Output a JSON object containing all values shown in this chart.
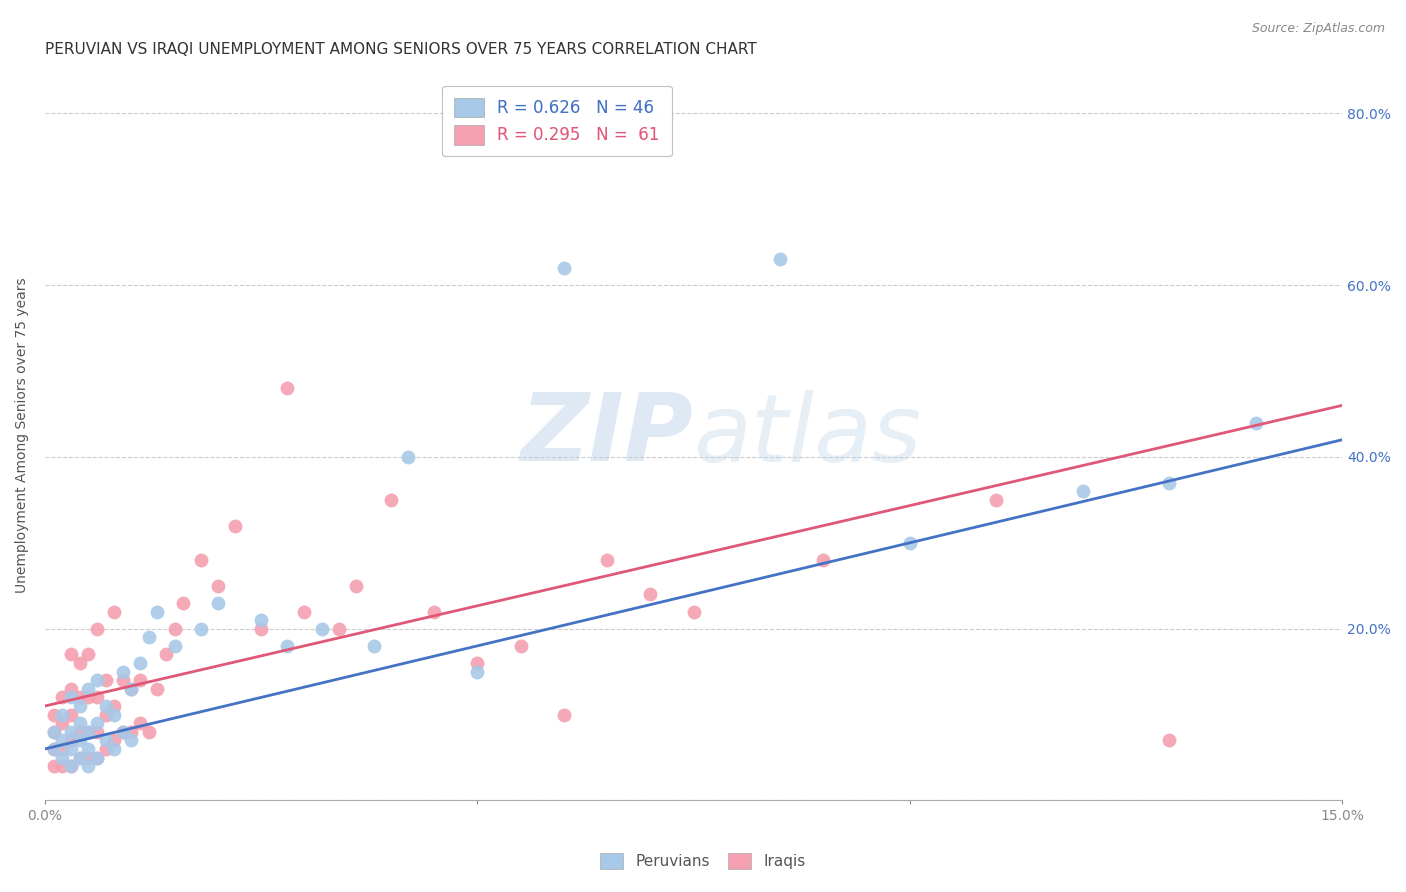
{
  "title": "PERUVIAN VS IRAQI UNEMPLOYMENT AMONG SENIORS OVER 75 YEARS CORRELATION CHART",
  "source": "Source: ZipAtlas.com",
  "ylabel": "Unemployment Among Seniors over 75 years",
  "x_min": 0.0,
  "x_max": 0.15,
  "y_min": 0.0,
  "y_max": 0.85,
  "y_ticks": [
    0.0,
    0.2,
    0.4,
    0.6,
    0.8
  ],
  "y_tick_labels": [
    "",
    "20.0%",
    "40.0%",
    "60.0%",
    "80.0%"
  ],
  "peruvian_color": "#a8c8e8",
  "iraqi_color": "#f4a0b0",
  "peruvian_line_color": "#4472c4",
  "iraqi_line_color": "#e05878",
  "peruvians_x": [
    0.001,
    0.001,
    0.002,
    0.002,
    0.002,
    0.003,
    0.003,
    0.003,
    0.003,
    0.004,
    0.004,
    0.004,
    0.004,
    0.005,
    0.005,
    0.005,
    0.005,
    0.006,
    0.006,
    0.006,
    0.007,
    0.007,
    0.008,
    0.008,
    0.009,
    0.009,
    0.01,
    0.01,
    0.011,
    0.012,
    0.013,
    0.015,
    0.018,
    0.02,
    0.025,
    0.028,
    0.032,
    0.038,
    0.042,
    0.05,
    0.06,
    0.085,
    0.1,
    0.12,
    0.13,
    0.14
  ],
  "peruvians_y": [
    0.06,
    0.08,
    0.05,
    0.07,
    0.1,
    0.04,
    0.06,
    0.08,
    0.12,
    0.05,
    0.07,
    0.09,
    0.11,
    0.04,
    0.06,
    0.08,
    0.13,
    0.05,
    0.09,
    0.14,
    0.07,
    0.11,
    0.06,
    0.1,
    0.08,
    0.15,
    0.07,
    0.13,
    0.16,
    0.19,
    0.22,
    0.18,
    0.2,
    0.23,
    0.21,
    0.18,
    0.2,
    0.18,
    0.4,
    0.15,
    0.62,
    0.63,
    0.3,
    0.36,
    0.37,
    0.44
  ],
  "iraqis_x": [
    0.001,
    0.001,
    0.001,
    0.001,
    0.002,
    0.002,
    0.002,
    0.002,
    0.003,
    0.003,
    0.003,
    0.003,
    0.003,
    0.004,
    0.004,
    0.004,
    0.004,
    0.005,
    0.005,
    0.005,
    0.005,
    0.006,
    0.006,
    0.006,
    0.006,
    0.007,
    0.007,
    0.007,
    0.008,
    0.008,
    0.008,
    0.009,
    0.009,
    0.01,
    0.01,
    0.011,
    0.011,
    0.012,
    0.013,
    0.014,
    0.015,
    0.016,
    0.018,
    0.02,
    0.022,
    0.025,
    0.028,
    0.03,
    0.034,
    0.036,
    0.04,
    0.045,
    0.05,
    0.055,
    0.06,
    0.065,
    0.07,
    0.075,
    0.09,
    0.11,
    0.13
  ],
  "iraqis_y": [
    0.04,
    0.06,
    0.08,
    0.1,
    0.04,
    0.06,
    0.09,
    0.12,
    0.04,
    0.07,
    0.1,
    0.13,
    0.17,
    0.05,
    0.08,
    0.12,
    0.16,
    0.05,
    0.08,
    0.12,
    0.17,
    0.05,
    0.08,
    0.12,
    0.2,
    0.06,
    0.1,
    0.14,
    0.07,
    0.11,
    0.22,
    0.08,
    0.14,
    0.08,
    0.13,
    0.09,
    0.14,
    0.08,
    0.13,
    0.17,
    0.2,
    0.23,
    0.28,
    0.25,
    0.32,
    0.2,
    0.48,
    0.22,
    0.2,
    0.25,
    0.35,
    0.22,
    0.16,
    0.18,
    0.1,
    0.28,
    0.24,
    0.22,
    0.28,
    0.35,
    0.07
  ],
  "peruvian_trend_x": [
    0.0,
    0.15
  ],
  "peruvian_trend_y": [
    0.06,
    0.42
  ],
  "iraqi_trend_x": [
    0.0,
    0.15
  ],
  "iraqi_trend_y": [
    0.11,
    0.46
  ],
  "background_color": "#ffffff",
  "grid_color": "#cccccc",
  "watermark_zip": "ZIP",
  "watermark_atlas": "atlas",
  "title_fontsize": 11,
  "axis_label_fontsize": 10,
  "tick_fontsize": 10,
  "source_fontsize": 9,
  "legend_R1": "R = 0.626",
  "legend_N1": "N = 46",
  "legend_R2": "R = 0.295",
  "legend_N2": "N =  61"
}
